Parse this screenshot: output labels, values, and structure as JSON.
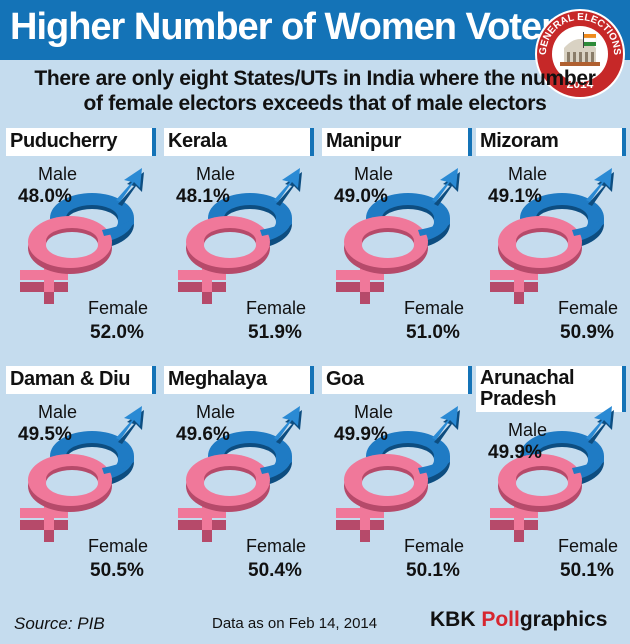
{
  "header": {
    "title": "Higher Number of Women Voters",
    "subtitle": "There are only eight States/UTs in India where the number of female electors exceeds that of male electors"
  },
  "badge": {
    "top_text": "GENERAL ELECTIONS",
    "year": "2014"
  },
  "labels": {
    "male": "Male",
    "female": "Female"
  },
  "colors": {
    "header_bg": "#1473b7",
    "background": "#c5dcee",
    "male_blue": "#1f7bc4",
    "female_pink": "#f0789a",
    "brand_red": "#d7262f"
  },
  "chart_data": {
    "type": "table",
    "title": "Higher Number of Women Voters",
    "categories": [
      "Puducherry",
      "Kerala",
      "Manipur",
      "Mizoram",
      "Daman & Diu",
      "Meghalaya",
      "Goa",
      "Arunachal Pradesh"
    ],
    "series": [
      {
        "name": "Male",
        "values": [
          48.0,
          48.1,
          49.0,
          49.1,
          49.5,
          49.6,
          49.9,
          49.9
        ]
      },
      {
        "name": "Female",
        "values": [
          52.0,
          51.9,
          51.0,
          50.9,
          50.5,
          50.4,
          50.1,
          50.1
        ]
      }
    ]
  },
  "states": [
    {
      "name": "Puducherry",
      "male": "48.0%",
      "female": "52.0%"
    },
    {
      "name": "Kerala",
      "male": "48.1%",
      "female": "51.9%"
    },
    {
      "name": "Manipur",
      "male": "49.0%",
      "female": "51.0%"
    },
    {
      "name": "Mizoram",
      "male": "49.1%",
      "female": "50.9%"
    },
    {
      "name": "Daman & Diu",
      "male": "49.5%",
      "female": "50.5%"
    },
    {
      "name": "Meghalaya",
      "male": "49.6%",
      "female": "50.4%"
    },
    {
      "name": "Goa",
      "male": "49.9%",
      "female": "50.1%"
    },
    {
      "name": "Arunachal Pradesh",
      "male": "49.9%",
      "female": "50.1%"
    }
  ],
  "footer": {
    "source": "Source: PIB",
    "date": "Data as on Feb 14, 2014",
    "brand_kbk": "KBK ",
    "brand_poll": "Poll",
    "brand_graphics": "graphics"
  }
}
